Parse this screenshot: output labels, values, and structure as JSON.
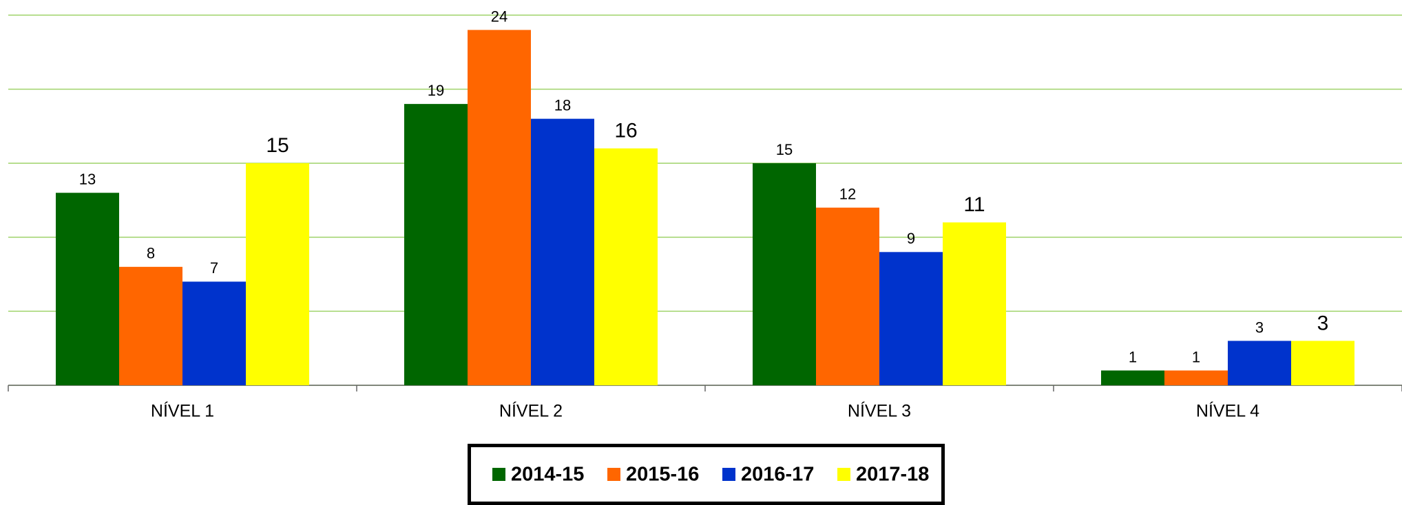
{
  "chart_data": {
    "type": "bar",
    "categories": [
      "NÍVEL 1",
      "NÍVEL 2",
      "NÍVEL 3",
      "NÍVEL 4"
    ],
    "series": [
      {
        "name": "2014-15",
        "color": "#006600",
        "values": [
          13,
          19,
          15,
          1
        ]
      },
      {
        "name": "2015-16",
        "color": "#ff6600",
        "values": [
          8,
          24,
          12,
          1
        ]
      },
      {
        "name": "2016-17",
        "color": "#0033cc",
        "values": [
          7,
          18,
          9,
          3
        ]
      },
      {
        "name": "2017-18",
        "color": "#ffff00",
        "values": [
          15,
          16,
          11,
          3
        ]
      }
    ],
    "ylim": [
      0,
      25
    ],
    "yticks": [
      0,
      5,
      10,
      15,
      20,
      25
    ],
    "grid": true,
    "legend": "bottom"
  }
}
